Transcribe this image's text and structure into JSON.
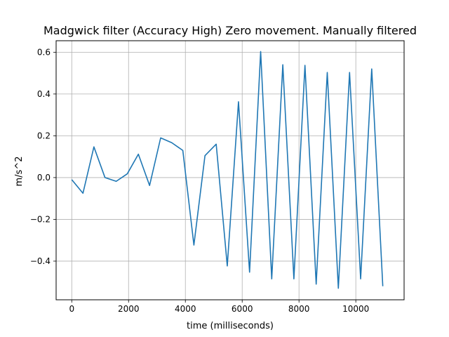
{
  "chart_data": {
    "type": "line",
    "title": "Madgwick filter (Accuracy High) Zero movement. Manually filtered",
    "xlabel": "time (milliseconds)",
    "ylabel": "m/s^2",
    "xlim": [
      -550,
      11700
    ],
    "ylim": [
      -0.585,
      0.655
    ],
    "xticks": [
      0,
      2000,
      4000,
      6000,
      8000,
      10000
    ],
    "xtick_labels": [
      "0",
      "2000",
      "4000",
      "6000",
      "8000",
      "10000"
    ],
    "yticks": [
      -0.4,
      -0.2,
      0.0,
      0.2,
      0.4,
      0.6
    ],
    "ytick_labels": [
      "−0.4",
      "−0.2",
      "0.0",
      "0.2",
      "0.4",
      "0.6"
    ],
    "grid": true,
    "line_color": "#1f77b4",
    "series": [
      {
        "x": [
          0,
          395,
          780,
          1170,
          1565,
          1955,
          2345,
          2740,
          3130,
          3520,
          3910,
          4300,
          4690,
          5085,
          5475,
          5870,
          6260,
          6650,
          7040,
          7430,
          7820,
          8210,
          8605,
          8995,
          9385,
          9780,
          10170,
          10560,
          10950
        ],
        "y": [
          -0.01,
          -0.075,
          0.147,
          0.0,
          -0.018,
          0.018,
          0.112,
          -0.038,
          0.19,
          0.167,
          0.13,
          -0.323,
          0.105,
          0.16,
          -0.423,
          0.363,
          -0.453,
          0.603,
          -0.485,
          0.54,
          -0.485,
          0.537,
          -0.51,
          0.503,
          -0.53,
          0.503,
          -0.485,
          0.52,
          -0.52
        ]
      }
    ]
  }
}
